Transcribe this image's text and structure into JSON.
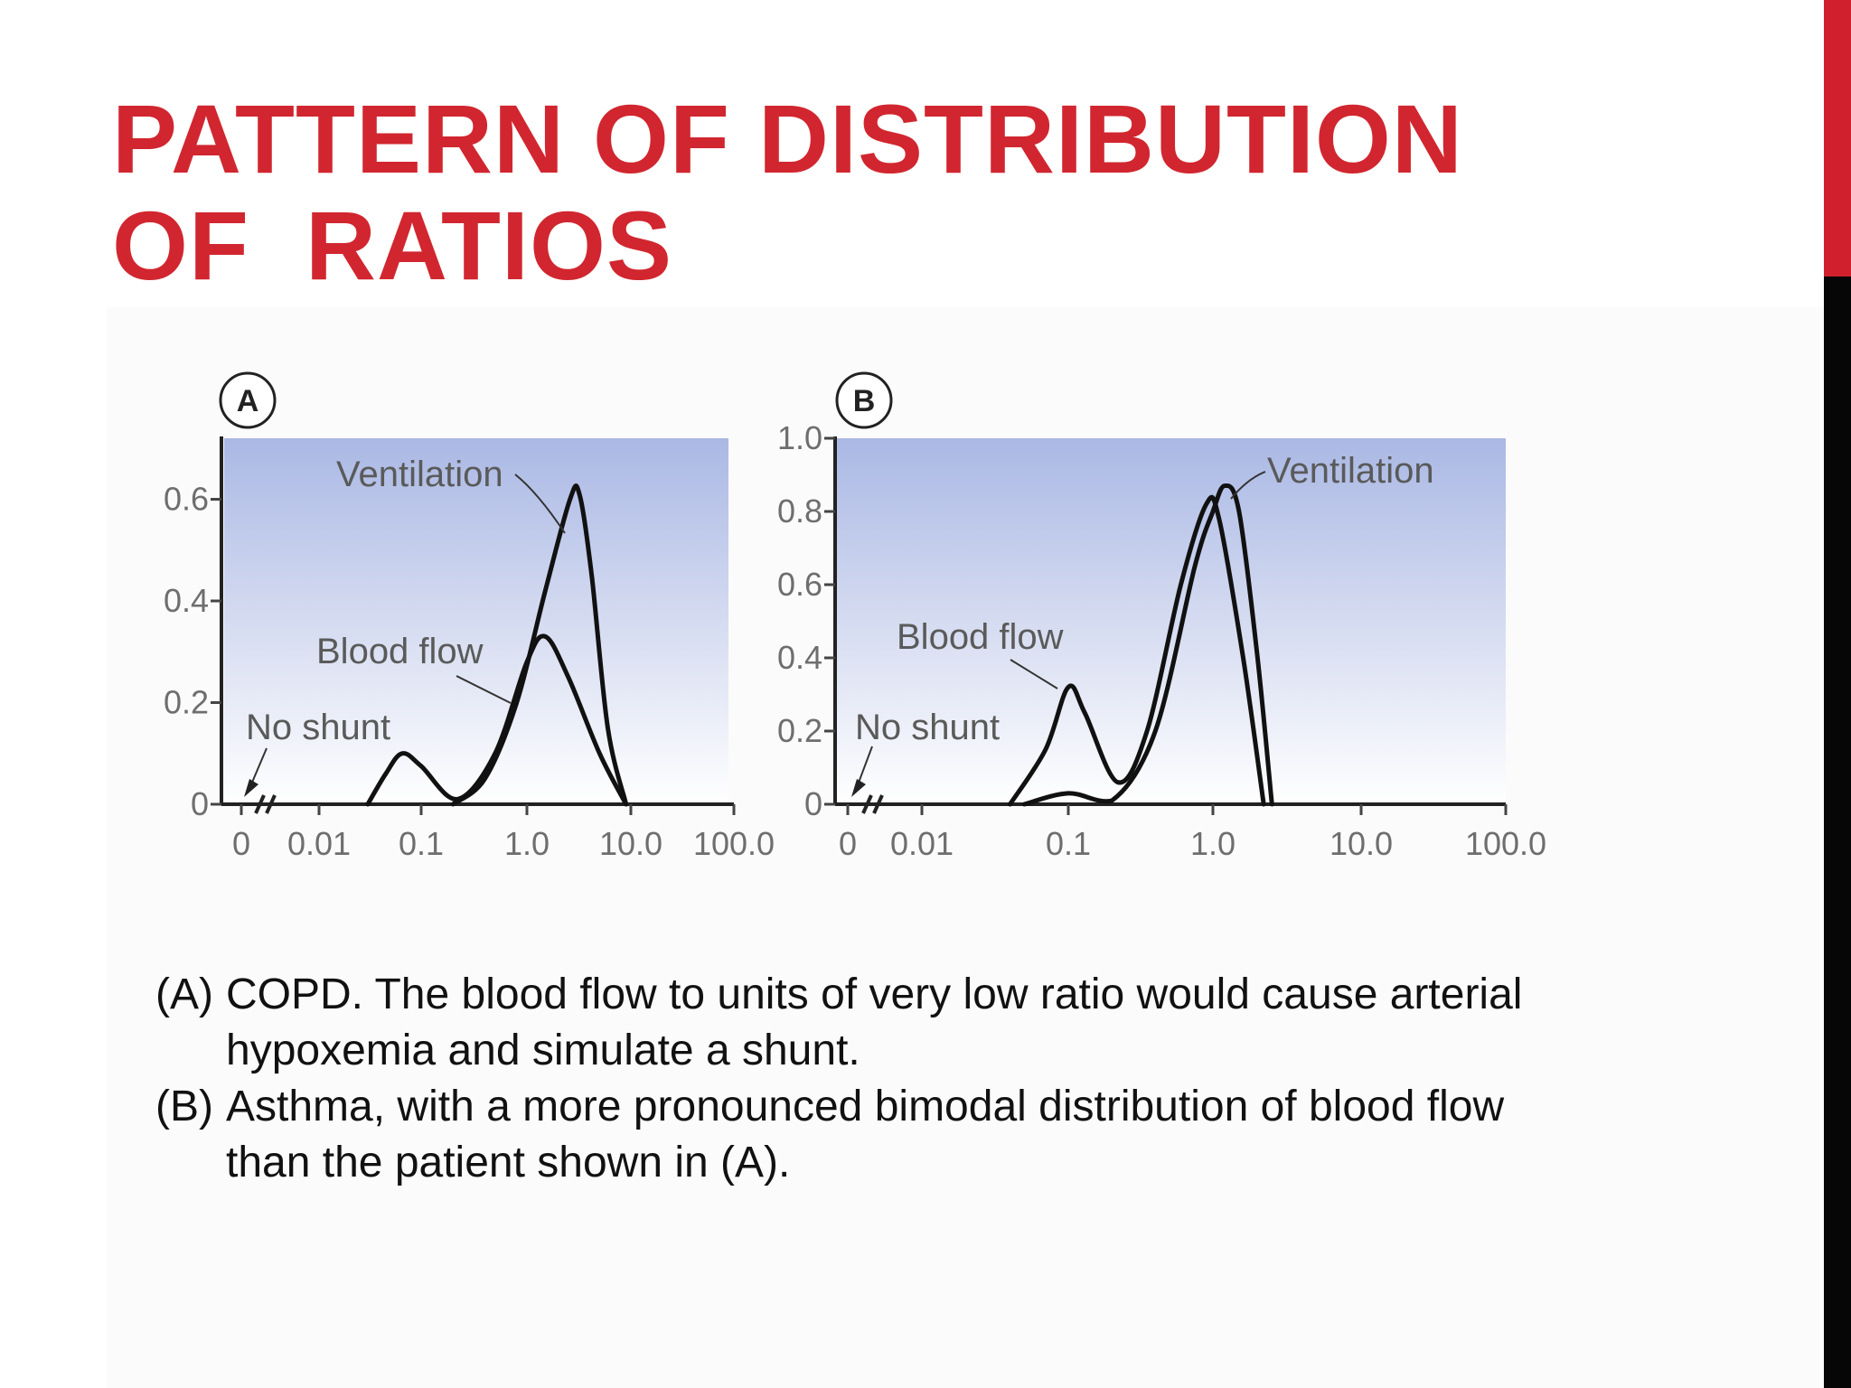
{
  "slide": {
    "title_line_1": "PATTERN OF DISTRIBUTION",
    "title_line_2": "OF  RATIOS",
    "captions": [
      {
        "tag": "(A)",
        "text": "COPD. The blood flow to units of very low ratio would cause arterial hypoxemia and simulate a shunt."
      },
      {
        "tag": "(B)",
        "text": "Asthma, with a more pronounced bimodal distribution of blood flow than the patient shown in (A)."
      }
    ],
    "colors": {
      "title": "#d1262f",
      "accent_bar_top": "#d0202e",
      "accent_bar_bottom": "#060606",
      "panel_top": "#aab8e4",
      "panel_bottom": "#ffffff"
    }
  },
  "chart_data": [
    {
      "type": "line",
      "panel": "A",
      "x_scale": "log",
      "x_tick_labels": [
        "0",
        "0.01",
        "0.1",
        "1.0",
        "10.0",
        "100.0"
      ],
      "y_tick_labels": [
        "0",
        "0.2",
        "0.4",
        "0.6"
      ],
      "ylim": [
        0,
        0.72
      ],
      "annotations": [
        "Ventilation",
        "Blood flow",
        "No shunt"
      ],
      "series": [
        {
          "label": "Ventilation",
          "points": [
            [
              0.2,
              0
            ],
            [
              0.4,
              0.05
            ],
            [
              0.8,
              0.2
            ],
            [
              1.5,
              0.42
            ],
            [
              2.6,
              0.6
            ],
            [
              3.2,
              0.61
            ],
            [
              4.2,
              0.45
            ],
            [
              6,
              0.15
            ],
            [
              9,
              0
            ]
          ]
        },
        {
          "label": "Blood flow",
          "points": [
            [
              0.03,
              0
            ],
            [
              0.045,
              0.06
            ],
            [
              0.065,
              0.1
            ],
            [
              0.1,
              0.075
            ],
            [
              0.22,
              0.01
            ],
            [
              0.5,
              0.1
            ],
            [
              1.0,
              0.28
            ],
            [
              1.5,
              0.33
            ],
            [
              2.5,
              0.25
            ],
            [
              5,
              0.1
            ],
            [
              9,
              0
            ]
          ]
        }
      ]
    },
    {
      "type": "line",
      "panel": "B",
      "x_scale": "log",
      "x_tick_labels": [
        "0",
        "0.01",
        "0.1",
        "1.0",
        "10.0",
        "100.0"
      ],
      "y_tick_labels": [
        "0",
        "0.2",
        "0.4",
        "0.6",
        "0.8",
        "1.0"
      ],
      "ylim": [
        0,
        1.0
      ],
      "annotations": [
        "Ventilation",
        "Blood flow",
        "No shunt"
      ],
      "series": [
        {
          "label": "Ventilation",
          "points": [
            [
              0.05,
              0
            ],
            [
              0.1,
              0.03
            ],
            [
              0.2,
              0.01
            ],
            [
              0.4,
              0.2
            ],
            [
              0.75,
              0.65
            ],
            [
              1.0,
              0.8
            ],
            [
              1.2,
              0.87
            ],
            [
              1.5,
              0.8
            ],
            [
              2.0,
              0.4
            ],
            [
              2.5,
              0
            ]
          ]
        },
        {
          "label": "Blood flow",
          "points": [
            [
              0.04,
              0
            ],
            [
              0.07,
              0.15
            ],
            [
              0.1,
              0.32
            ],
            [
              0.13,
              0.25
            ],
            [
              0.22,
              0.06
            ],
            [
              0.35,
              0.2
            ],
            [
              0.6,
              0.6
            ],
            [
              0.9,
              0.82
            ],
            [
              1.1,
              0.78
            ],
            [
              1.6,
              0.4
            ],
            [
              2.2,
              0
            ]
          ]
        }
      ]
    }
  ]
}
